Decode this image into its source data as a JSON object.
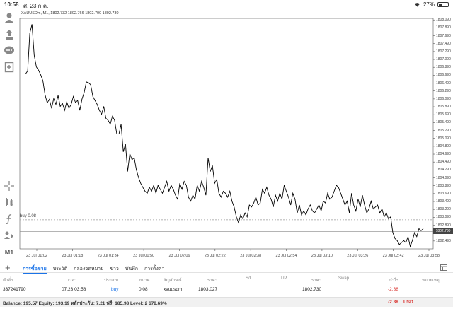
{
  "status_bar": {
    "time": "10:58",
    "date": "ศ. 23 ก.ค.",
    "battery": "27%",
    "battery_level": 0.27
  },
  "toolbar": {
    "icons": [
      "account-icon",
      "trade-icon",
      "chat-icon",
      "new-order-icon",
      "crosshair-icon",
      "indicators-icon",
      "function-icon",
      "objects-icon"
    ],
    "timeframe": "M1"
  },
  "chart": {
    "symbol_info": "XAUUSDm, M1, 1802.732 1802.766 1802.700 1802.730",
    "buy_label": "buy 0.08",
    "current_price": "1802.730",
    "y_ticks": [
      "1808.090",
      "1807.890",
      "1807.690",
      "1807.490",
      "1807.290",
      "1807.090",
      "1806.890",
      "1806.690",
      "1806.490",
      "1806.290",
      "1806.090",
      "1805.890",
      "1805.690",
      "1805.490",
      "1805.290",
      "1805.090",
      "1804.890",
      "1804.690",
      "1804.490",
      "1804.290",
      "1804.090",
      "1803.890",
      "1803.690",
      "1803.490",
      "1803.290",
      "1803.090",
      "1802.890",
      "1802.690",
      "1802.490"
    ],
    "x_ticks": [
      "23 Jul 01:02",
      "23 Jul 01:18",
      "23 Jul 01:34",
      "23 Jul 01:50",
      "23 Jul 02:06",
      "23 Jul 02:22",
      "23 Jul 02:38",
      "23 Jul 02:54",
      "23 Jul 03:10",
      "23 Jul 03:26",
      "23 Jul 03:42",
      "23 Jul 03:58"
    ],
    "line_color": "#000000",
    "price_tag_color": "#444444"
  },
  "chart_data": {
    "type": "line",
    "y_min": 1802.29,
    "y_max": 1808.13,
    "buy_price": 1803.027,
    "current": 1802.73,
    "values": [
      1806.72,
      1806.8,
      1807.75,
      1807.98,
      1807.2,
      1806.9,
      1806.82,
      1806.7,
      1806.55,
      1806.2,
      1805.99,
      1806.08,
      1805.85,
      1806.1,
      1805.95,
      1806.18,
      1805.9,
      1805.98,
      1805.8,
      1806.02,
      1805.85,
      1805.95,
      1806.15,
      1806.0,
      1806.05,
      1805.8,
      1806.08,
      1806.25,
      1806.52,
      1806.5,
      1806.45,
      1806.15,
      1806.05,
      1805.95,
      1805.8,
      1805.7,
      1805.9,
      1805.6,
      1805.55,
      1805.45,
      1805.65,
      1805.55,
      1805.2,
      1805.2,
      1805.45,
      1804.75,
      1804.95,
      1804.25,
      1804.7,
      1804.55,
      1804.6,
      1804.3,
      1804.1,
      1803.95,
      1803.85,
      1803.75,
      1803.7,
      1803.85,
      1803.75,
      1803.9,
      1803.7,
      1803.9,
      1803.8,
      1803.7,
      1803.85,
      1804.0,
      1803.75,
      1803.9,
      1803.8,
      1803.65,
      1803.55,
      1803.95,
      1803.8,
      1804.0,
      1803.9,
      1803.6,
      1803.5,
      1803.65,
      1803.55,
      1803.9,
      1803.75,
      1804.0,
      1803.85,
      1803.65,
      1804.6,
      1804.25,
      1804.4,
      1803.95,
      1804.05,
      1803.7,
      1803.6,
      1803.75,
      1803.7,
      1803.6,
      1803.75,
      1803.5,
      1803.35,
      1803.1,
      1802.95,
      1803.15,
      1803.05,
      1803.2,
      1803.1,
      1803.4,
      1803.35,
      1803.45,
      1803.6,
      1803.4,
      1803.45,
      1803.8,
      1803.7,
      1803.85,
      1803.65,
      1803.55,
      1803.35,
      1803.65,
      1803.5,
      1803.7,
      1803.55,
      1803.9,
      1803.75,
      1803.6,
      1803.4,
      1803.7,
      1803.55,
      1803.2,
      1803.4,
      1803.15,
      1803.25,
      1803.15,
      1803.3,
      1803.4,
      1803.25,
      1803.2,
      1803.3,
      1803.4,
      1803.25,
      1803.5,
      1803.45,
      1803.7,
      1803.55,
      1803.6,
      1803.75,
      1803.9,
      1803.85,
      1803.7,
      1803.55,
      1803.4,
      1803.5,
      1803.2,
      1803.7,
      1803.4,
      1803.25,
      1803.55,
      1803.35,
      1803.65,
      1803.4,
      1803.2,
      1803.3,
      1803.5,
      1803.3,
      1803.35,
      1803.4,
      1803.2,
      1803.3,
      1803.1,
      1803.2,
      1803.05,
      1803.1,
      1802.7,
      1802.55,
      1802.5,
      1802.4,
      1802.45,
      1802.5,
      1802.45,
      1802.6,
      1802.35,
      1802.5,
      1802.7,
      1802.6,
      1802.8,
      1802.75,
      1802.8
    ]
  },
  "tabs": [
    "การซื้อขาย",
    "ประวัติ",
    "กล่องจดหมาย",
    "ข่าว",
    "บันทึก",
    "การตั้งค่า"
  ],
  "table": {
    "headers": [
      "คำสั่ง",
      "เวลา",
      "ประเภท",
      "ขนาด",
      "สัญลักษณ์",
      "ราคา",
      "S/L",
      "T/P",
      "ราคา",
      "Swap",
      "กำไร",
      "หมายเหตุ"
    ],
    "row": {
      "order": "337241790",
      "time": "07.23 03:58",
      "type": "buy",
      "volume": "0.08",
      "symbol": "xauusdm",
      "open_price": "1803.027",
      "price": "1802.730",
      "profit": "-2.38"
    }
  },
  "footer": {
    "summary": "Balance: 195.57 Equity: 193.19 หลักประกัน: 7.21 ฟรี: 185.98 Level: 2 678.69%",
    "total": "-2.38",
    "currency": "USD"
  }
}
